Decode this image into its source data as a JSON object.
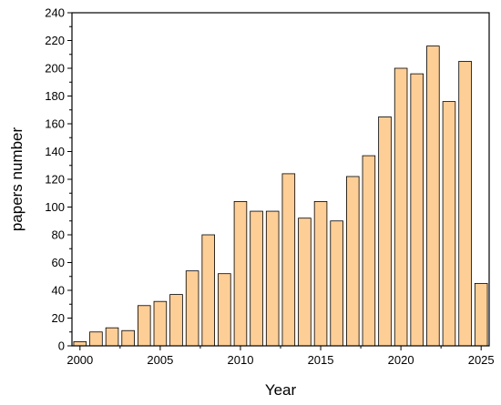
{
  "chart_data": {
    "type": "bar",
    "xlabel": "Year",
    "ylabel": "papers number",
    "xlim": [
      1999.5,
      2025.5
    ],
    "ylim": [
      0,
      240
    ],
    "x_ticks": [
      2000,
      2005,
      2010,
      2015,
      2020,
      2025
    ],
    "y_ticks": [
      0,
      20,
      40,
      60,
      80,
      100,
      120,
      140,
      160,
      180,
      200,
      220,
      240
    ],
    "grid": false,
    "x": [
      2000,
      2001,
      2002,
      2003,
      2004,
      2005,
      2006,
      2007,
      2008,
      2009,
      2010,
      2011,
      2012,
      2013,
      2014,
      2015,
      2016,
      2017,
      2018,
      2019,
      2020,
      2021,
      2022,
      2023,
      2024,
      2025
    ],
    "values": [
      3,
      10,
      13,
      11,
      29,
      32,
      37,
      54,
      80,
      52,
      104,
      97,
      97,
      124,
      92,
      104,
      90,
      122,
      137,
      165,
      200,
      196,
      216,
      176,
      205,
      45
    ],
    "bar_color": "#FDCE96",
    "edge_color": "#000000"
  }
}
